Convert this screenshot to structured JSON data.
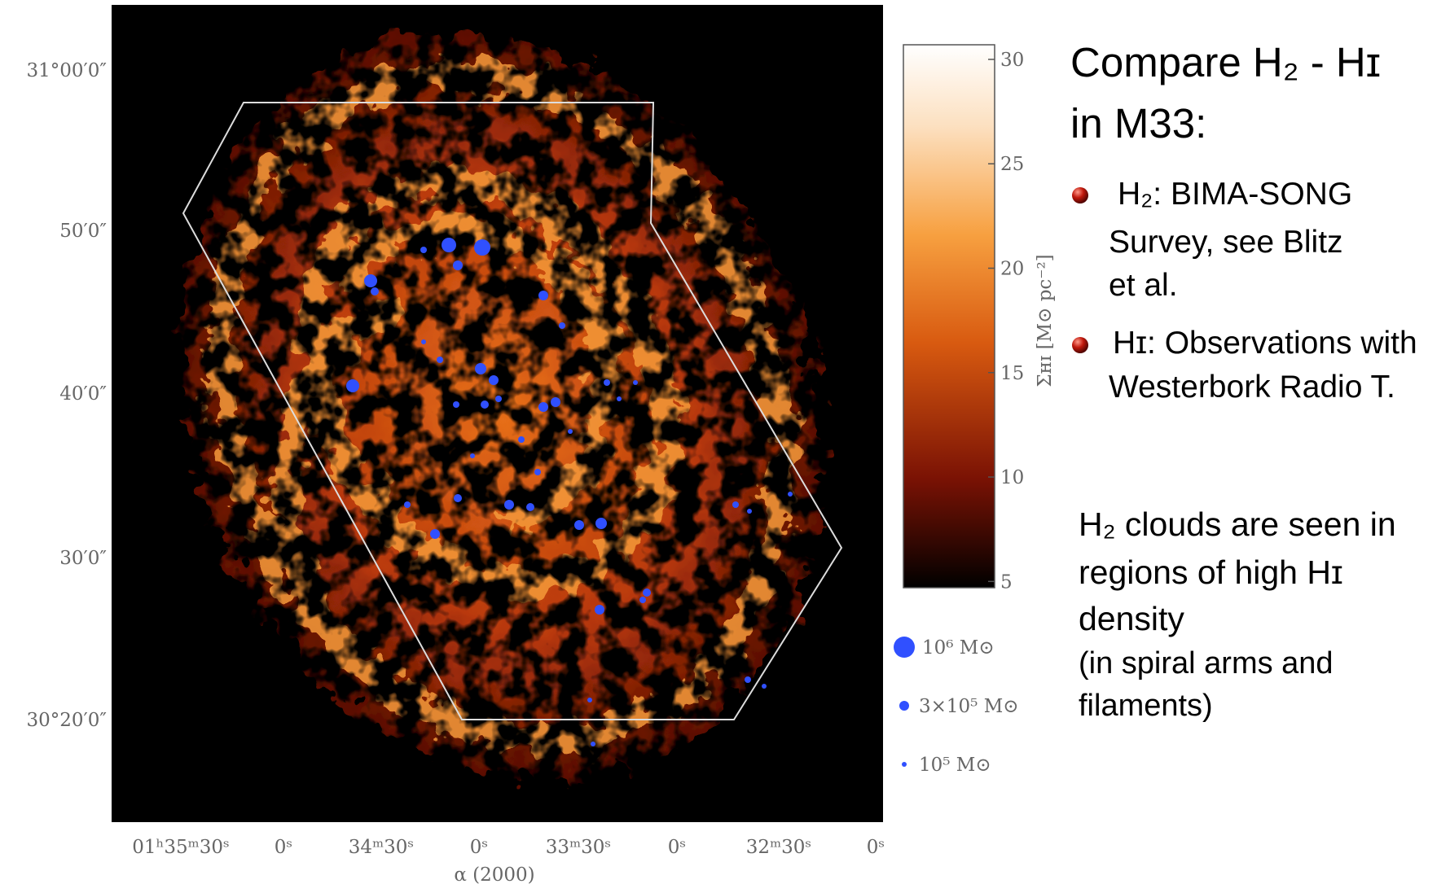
{
  "figure": {
    "y_axis_labels": [
      "31°00′0″",
      "50′0″",
      "40′0″",
      "30′0″",
      "30°20′0″"
    ],
    "x_axis_labels": [
      "01ʰ35ᵐ30ˢ",
      "0ˢ",
      "34ᵐ30ˢ",
      "0ˢ",
      "33ᵐ30ˢ",
      "0ˢ",
      "32ᵐ30ˢ",
      "0ˢ"
    ],
    "x_axis_title": "α (2000)",
    "colorbar": {
      "label": "Σʜɪ [M⊙ pc⁻²]",
      "lim": [
        4.7,
        30.7
      ],
      "ticks": [
        5,
        10,
        15,
        20,
        25,
        30
      ]
    },
    "legend": [
      "10⁶ M⊙",
      "3×10⁵ M⊙",
      "10⁵ M⊙"
    ]
  },
  "title": [
    "Compare H₂ - Hɪ",
    "in M33:"
  ],
  "bullets": [
    [
      "H₂: BIMA-SONG",
      "Survey, see Blitz",
      "et al."
    ],
    [
      "Hɪ: Observations with",
      "Westerbork Radio T."
    ]
  ],
  "note": [
    "H₂ clouds are seen in",
    "regions of high Hɪ",
    "density"
  ],
  "note_detail": [
    "(in spiral arms and",
    "filaments)"
  ]
}
